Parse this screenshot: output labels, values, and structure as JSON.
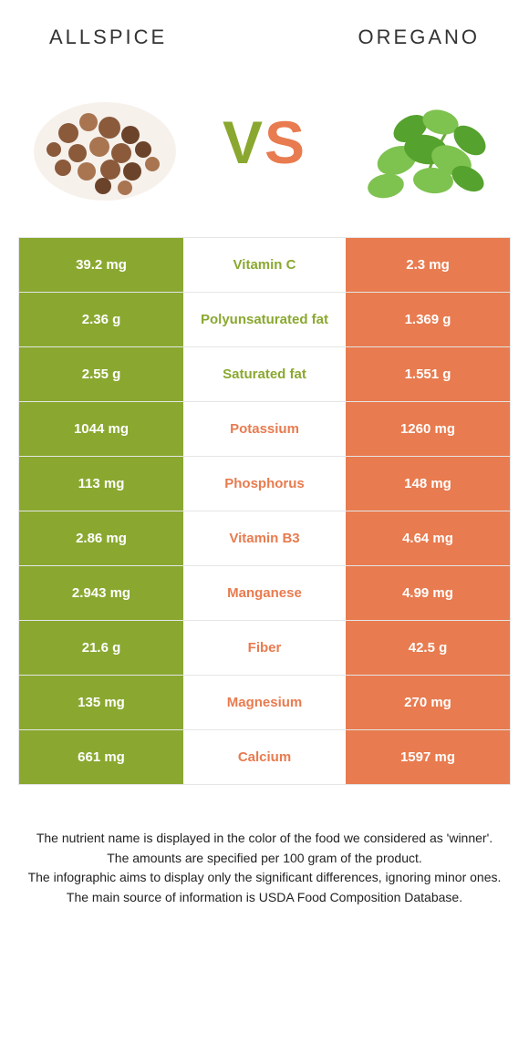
{
  "colors": {
    "green": "#8aa830",
    "orange": "#e87b4f",
    "row_border": "#e5e5e5",
    "bg": "#ffffff",
    "text": "#333333"
  },
  "header": {
    "left": "Allspice",
    "right": "Oregano"
  },
  "vs": {
    "v": "V",
    "s": "S"
  },
  "table": {
    "left_color": "green",
    "right_color": "orange",
    "rows": [
      {
        "left": "39.2 mg",
        "label": "Vitamin C",
        "right": "2.3 mg",
        "winner": "green"
      },
      {
        "left": "2.36 g",
        "label": "Polyunsaturated fat",
        "right": "1.369 g",
        "winner": "green"
      },
      {
        "left": "2.55 g",
        "label": "Saturated fat",
        "right": "1.551 g",
        "winner": "green"
      },
      {
        "left": "1044 mg",
        "label": "Potassium",
        "right": "1260 mg",
        "winner": "orange"
      },
      {
        "left": "113 mg",
        "label": "Phosphorus",
        "right": "148 mg",
        "winner": "orange"
      },
      {
        "left": "2.86 mg",
        "label": "Vitamin B3",
        "right": "4.64 mg",
        "winner": "orange"
      },
      {
        "left": "2.943 mg",
        "label": "Manganese",
        "right": "4.99 mg",
        "winner": "orange"
      },
      {
        "left": "21.6 g",
        "label": "Fiber",
        "right": "42.5 g",
        "winner": "orange"
      },
      {
        "left": "135 mg",
        "label": "Magnesium",
        "right": "270 mg",
        "winner": "orange"
      },
      {
        "left": "661 mg",
        "label": "Calcium",
        "right": "1597 mg",
        "winner": "orange"
      }
    ]
  },
  "notes": {
    "l1": "The nutrient name is displayed in the color of the food we considered as 'winner'.",
    "l2": "The amounts are specified per 100 gram of the product.",
    "l3": "The infographic aims to display only the significant differences, ignoring minor ones.",
    "l4": "The main source of information is USDA Food Composition Database."
  }
}
